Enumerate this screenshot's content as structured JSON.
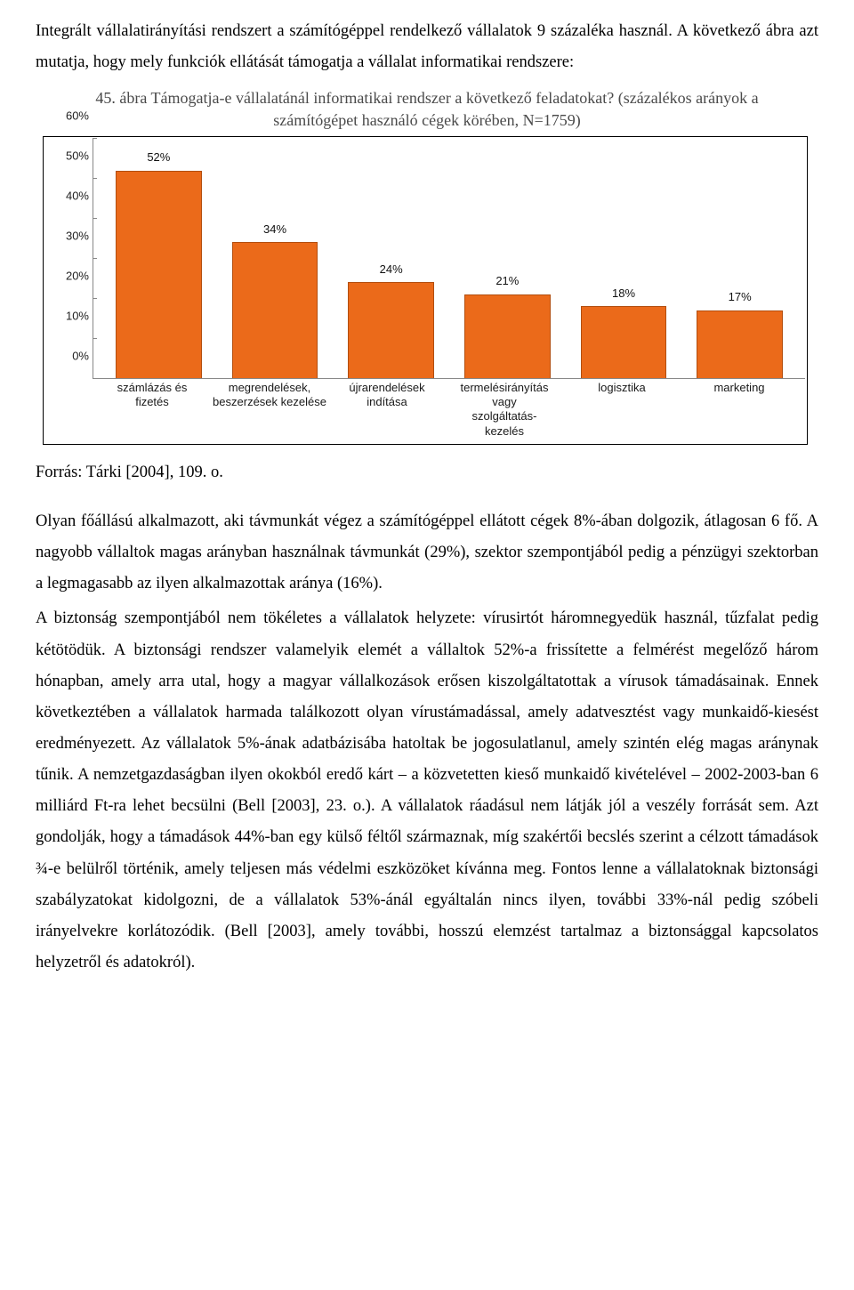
{
  "intro": {
    "p1": "Integrált vállalatirányítási rendszert a számítógéppel rendelkező vállalatok 9 százaléka használ. A következő ábra azt mutatja, hogy mely funkciók ellátását támogatja a vállalat informatikai rendszere:"
  },
  "chart": {
    "title_num": "45.",
    "title_rest": " ábra Támogatja-e vállalatánál informatikai rendszer a következő feladatokat? (százalékos arányok a számítógépet használó cégek körében, N=1759)",
    "type": "bar",
    "y_ticks": [
      "0%",
      "10%",
      "20%",
      "30%",
      "40%",
      "50%",
      "60%"
    ],
    "ylim_max": 60,
    "bar_color": "#eb6a1a",
    "border_color": "#888888",
    "categories": [
      "számlázás és fizetés",
      "megrendelések, beszerzések kezelése",
      "újrarendelések indítása",
      "termelésirányítás vagy szolgáltatás-kezelés",
      "logisztika",
      "marketing"
    ],
    "values": [
      52,
      34,
      24,
      21,
      18,
      17
    ],
    "value_labels": [
      "52%",
      "34%",
      "24%",
      "21%",
      "18%",
      "17%"
    ]
  },
  "source": "Forrás: Tárki [2004], 109. o.",
  "body": {
    "p2": "Olyan főállású alkalmazott, aki távmunkát végez a számítógéppel ellátott cégek 8%-ában dolgozik, átlagosan 6 fő. A nagyobb vállaltok magas arányban használnak távmunkát (29%), szektor szempontjából pedig a pénzügyi szektorban a legmagasabb az ilyen alkalmazottak aránya (16%).",
    "p3": "A biztonság szempontjából nem tökéletes a vállalatok helyzete: vírusirtót háromnegyedük használ, tűzfalat pedig kétötödük. A biztonsági rendszer valamelyik elemét a vállaltok 52%-a frissítette a felmérést megelőző három hónapban, amely arra utal, hogy a magyar vállalkozások erősen kiszolgáltatottak a vírusok támadásainak. Ennek következtében a vállalatok harmada találkozott olyan vírustámadással, amely adatvesztést vagy munkaidő-kiesést eredményezett. Az vállalatok 5%-ának adatbázisába hatoltak be jogosulatlanul, amely szintén elég magas aránynak tűnik. A nemzetgazdaságban ilyen okokból eredő kárt – a közvetetten kieső munkaidő kivételével – 2002-2003-ban 6 milliárd Ft-ra lehet becsülni (Bell [2003], 23. o.). A vállalatok ráadásul nem látják jól a veszély forrását sem. Azt gondolják, hogy a támadások 44%-ban egy külső féltől származnak, míg szakértői becslés szerint a célzott támadások ¾-e belülről történik, amely teljesen más védelmi eszközöket kívánna meg. Fontos lenne a vállalatoknak biztonsági szabályzatokat kidolgozni, de a vállalatok 53%-ánál egyáltalán nincs ilyen, további 33%-nál pedig szóbeli irányelvekre korlátozódik. (Bell [2003], amely további, hosszú elemzést tartalmaz a biztonsággal kapcsolatos helyzetről és adatokról)."
  }
}
